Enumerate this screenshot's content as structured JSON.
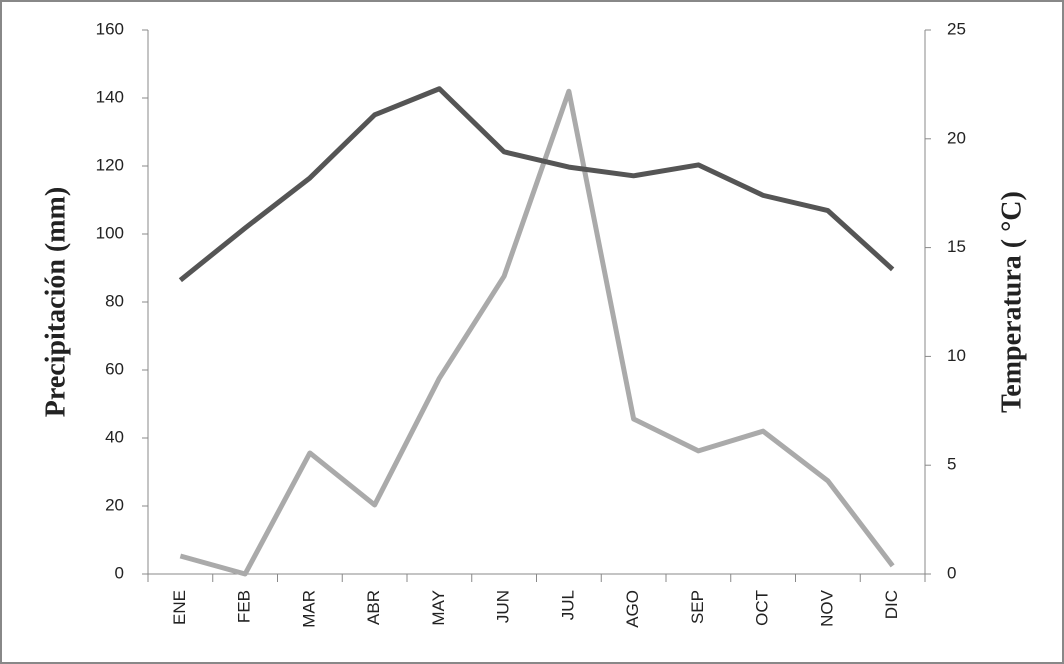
{
  "chart_data": {
    "type": "line",
    "y_label": "Precipitación (mm)",
    "y2_label": "Temperatura ( °C)",
    "categories": [
      "ENE",
      "FEB",
      "MAR",
      "ABR",
      "MAY",
      "JUN",
      "JUL",
      "AGO",
      "SEP",
      "OCT",
      "NOV",
      "DIC"
    ],
    "series": [
      {
        "color": "#aaaaaa",
        "values": [
          5.3,
          0,
          35.6,
          20.3,
          57.6,
          87.6,
          142,
          45.6,
          36.2,
          42,
          27.4,
          2.4
        ]
      },
      {
        "color": "#555555",
        "axis": "y2",
        "values": [
          13.5,
          15.9,
          18.2,
          21.1,
          22.3,
          19.4,
          18.7,
          18.3,
          18.8,
          17.4,
          16.7,
          14.0
        ]
      }
    ],
    "ylim": [
      0,
      160
    ],
    "yticks": [
      0,
      20,
      40,
      60,
      80,
      100,
      120,
      140,
      160
    ],
    "y2lim": [
      0,
      25
    ],
    "y2ticks": [
      0,
      5,
      10,
      15,
      20,
      25
    ],
    "grid": false
  }
}
